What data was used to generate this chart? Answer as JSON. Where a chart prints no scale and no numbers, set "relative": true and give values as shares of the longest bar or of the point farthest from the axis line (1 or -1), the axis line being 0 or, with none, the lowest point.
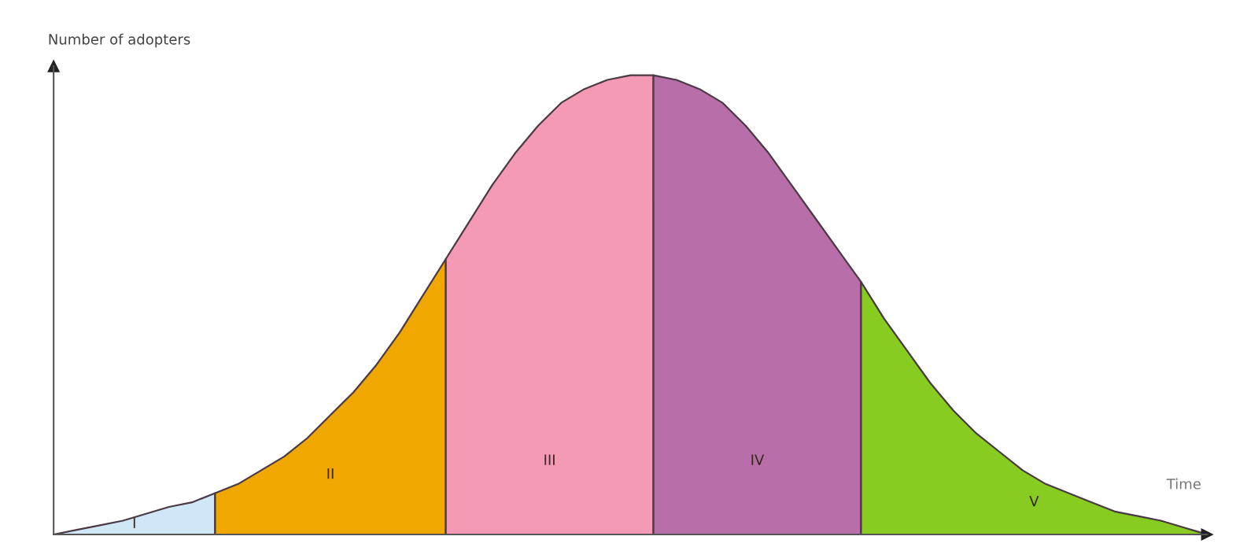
{
  "chart_data": {
    "type": "area",
    "relative": true,
    "xlabel": "Time",
    "ylabel": "Number of adopters",
    "grid": false,
    "legend": false,
    "categories": [
      null,
      null,
      null,
      null,
      null,
      null,
      null,
      null,
      null,
      null,
      null,
      null,
      null,
      null,
      null,
      null,
      null,
      null,
      null,
      null,
      null,
      null,
      null,
      null,
      null,
      null,
      null,
      null,
      null,
      null,
      null,
      null,
      null,
      null,
      null,
      null,
      null,
      null,
      null,
      null,
      null,
      null,
      null,
      null,
      null,
      null,
      null,
      null,
      null,
      null,
      null
    ],
    "series": [
      {
        "name": "I",
        "color": "#cfe7f7",
        "values": [
          0.0,
          0.01,
          0.02,
          0.03,
          0.045,
          0.06,
          0.07,
          0.09,
          null,
          null,
          null,
          null,
          null,
          null,
          null,
          null,
          null,
          null,
          null,
          null,
          null,
          null,
          null,
          null,
          null,
          null,
          null,
          null,
          null,
          null,
          null,
          null,
          null,
          null,
          null,
          null,
          null,
          null,
          null,
          null,
          null,
          null,
          null,
          null,
          null,
          null,
          null,
          null,
          null,
          null,
          null
        ]
      },
      {
        "name": "II",
        "color": "#f0a800",
        "values": [
          null,
          null,
          null,
          null,
          null,
          null,
          null,
          0.09,
          0.11,
          0.14,
          0.17,
          0.21,
          0.26,
          0.31,
          0.37,
          0.44,
          0.52,
          0.6,
          null,
          null,
          null,
          null,
          null,
          null,
          null,
          null,
          null,
          null,
          null,
          null,
          null,
          null,
          null,
          null,
          null,
          null,
          null,
          null,
          null,
          null,
          null,
          null,
          null,
          null,
          null,
          null,
          null,
          null,
          null,
          null,
          null
        ]
      },
      {
        "name": "III",
        "color": "#f49ab5",
        "values": [
          null,
          null,
          null,
          null,
          null,
          null,
          null,
          null,
          null,
          null,
          null,
          null,
          null,
          null,
          null,
          null,
          null,
          0.6,
          0.68,
          0.76,
          0.83,
          0.89,
          0.94,
          0.97,
          0.99,
          1.0,
          1.0,
          null,
          null,
          null,
          null,
          null,
          null,
          null,
          null,
          null,
          null,
          null,
          null,
          null,
          null,
          null,
          null,
          null,
          null,
          null,
          null,
          null,
          null,
          null,
          null
        ]
      },
      {
        "name": "IV",
        "color": "#b86ea8",
        "values": [
          null,
          null,
          null,
          null,
          null,
          null,
          null,
          null,
          null,
          null,
          null,
          null,
          null,
          null,
          null,
          null,
          null,
          null,
          null,
          null,
          null,
          null,
          null,
          null,
          null,
          null,
          1.0,
          0.99,
          0.97,
          0.94,
          0.89,
          0.83,
          0.76,
          0.69,
          0.62,
          0.55,
          null,
          null,
          null,
          null,
          null,
          null,
          null,
          null,
          null,
          null,
          null,
          null,
          null,
          null,
          null
        ]
      },
      {
        "name": "V",
        "color": "#88cc22",
        "values": [
          null,
          null,
          null,
          null,
          null,
          null,
          null,
          null,
          null,
          null,
          null,
          null,
          null,
          null,
          null,
          null,
          null,
          null,
          null,
          null,
          null,
          null,
          null,
          null,
          null,
          null,
          null,
          null,
          null,
          null,
          null,
          null,
          null,
          null,
          null,
          0.55,
          0.47,
          0.4,
          0.33,
          0.27,
          0.22,
          0.18,
          0.14,
          0.11,
          0.09,
          0.07,
          0.05,
          0.04,
          0.03,
          0.015,
          0.0
        ]
      }
    ]
  }
}
